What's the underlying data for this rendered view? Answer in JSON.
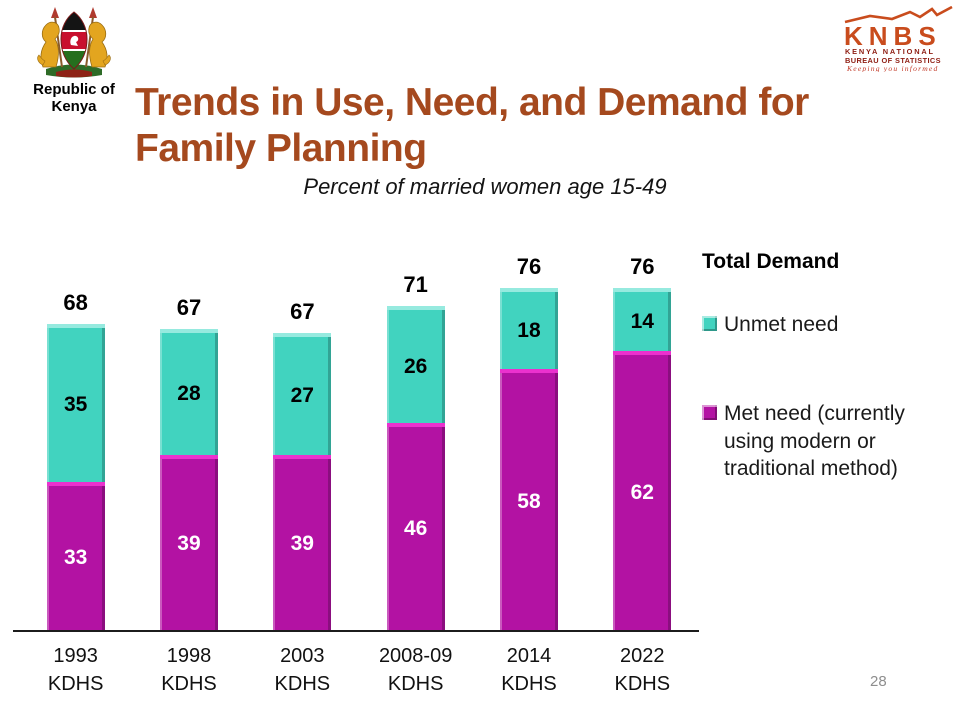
{
  "slide": {
    "page_number": "28",
    "background_color": "#FFFFFF"
  },
  "branding": {
    "left": {
      "emblem": "kenya-coat-of-arms",
      "label_line1": "Republic of",
      "label_line2": "Kenya"
    },
    "right": {
      "acronym": "KNBS",
      "org_line1": "KENYA NATIONAL",
      "org_line2": "BUREAU OF STATISTICS",
      "tagline": "Keeping you informed",
      "accent_color": "#C94C1D",
      "dark_color": "#8E1D12",
      "tagline_color": "#C23A28"
    }
  },
  "header": {
    "title_line1": "Trends in Use, Need, and Demand for",
    "title_line2": "Family Planning",
    "title_color": "#A5491E",
    "subtitle": "Percent of married women age 15-49"
  },
  "chart_data": {
    "type": "bar",
    "stacked": true,
    "categories": [
      "1993 KDHS",
      "1998 KDHS",
      "2003 KDHS",
      "2008-09 KDHS",
      "2014 KDHS",
      "2022 KDHS"
    ],
    "series": [
      {
        "name": "Unmet need",
        "color": "#41D3BF",
        "top_edge_color": "#96EADF",
        "label_color": "#000000",
        "values": [
          35,
          28,
          27,
          26,
          18,
          14
        ]
      },
      {
        "name": "Met need (currently using modern or traditional method)",
        "color": "#B312A3",
        "top_edge_color": "#EB31CE",
        "label_color": "#FFFFFF",
        "values": [
          33,
          39,
          39,
          46,
          58,
          62
        ]
      }
    ],
    "totals": [
      68,
      67,
      67,
      71,
      76,
      76
    ],
    "legend_title": "Total Demand",
    "legend_position": "right",
    "ylim": [
      0,
      80
    ],
    "grid": false,
    "bar_value_labels": true,
    "total_labels_above_bars": true
  }
}
